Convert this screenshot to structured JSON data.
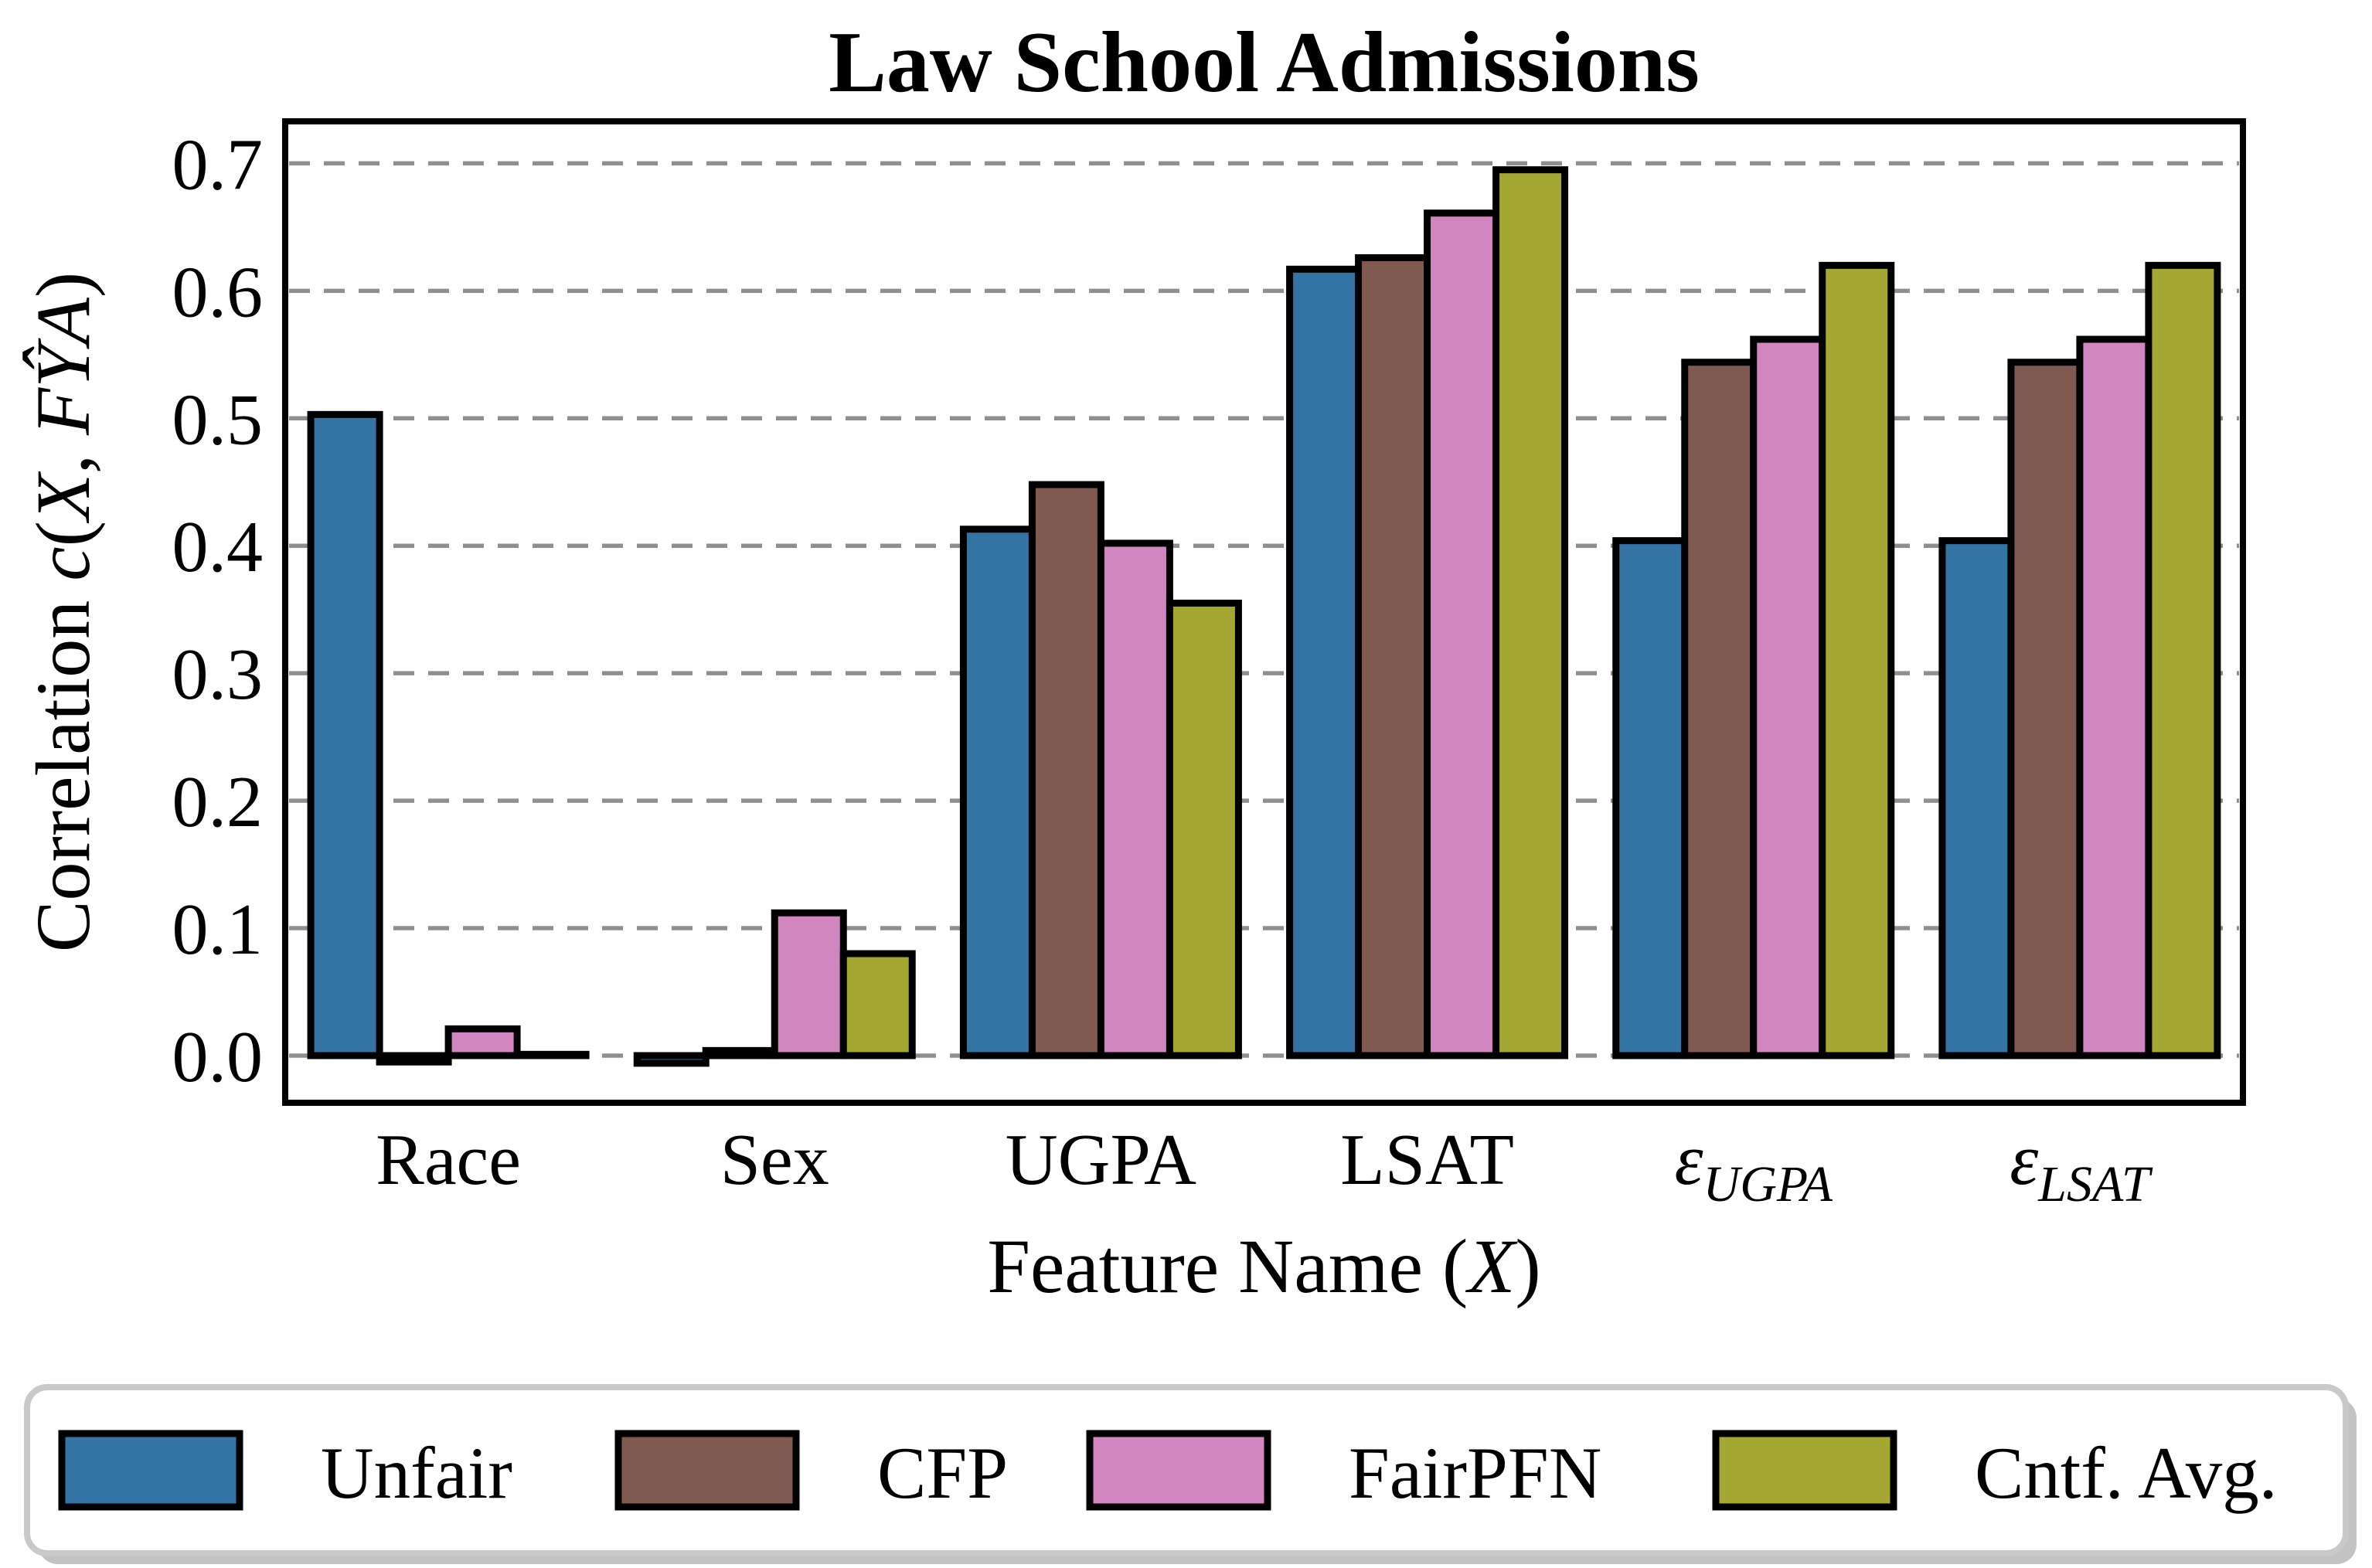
{
  "chart_data": {
    "type": "bar",
    "title": "Law School Admissions",
    "xlabel": "Feature Name (X)",
    "ylabel": "Correlation c(X, FŶA)",
    "xlabel_parts": [
      {
        "t": "Feature Name (",
        "i": 0
      },
      {
        "t": "X",
        "i": 1
      },
      {
        "t": ")",
        "i": 0
      }
    ],
    "ylabel_parts": [
      {
        "t": "Correlation ",
        "i": 0
      },
      {
        "t": "c",
        "i": 1
      },
      {
        "t": "(",
        "i": 0
      },
      {
        "t": "X",
        "i": 1
      },
      {
        "t": ", ",
        "i": 0
      },
      {
        "t": "FŶA",
        "i": 1
      },
      {
        "t": ")",
        "i": 0
      }
    ],
    "categories": [
      {
        "text": "Race",
        "sub": null,
        "italic": false
      },
      {
        "text": "Sex",
        "sub": null,
        "italic": false
      },
      {
        "text": "UGPA",
        "sub": null,
        "italic": false
      },
      {
        "text": "LSAT",
        "sub": null,
        "italic": false
      },
      {
        "text": "ε",
        "sub": "UGPA",
        "italic": true
      },
      {
        "text": "ε",
        "sub": "LSAT",
        "italic": true
      }
    ],
    "series": [
      {
        "name": "Unfair",
        "color": "#3374A4",
        "values": [
          0.503,
          -0.006,
          0.413,
          0.617,
          0.404,
          0.404
        ]
      },
      {
        "name": "CFP",
        "color": "#805A50",
        "values": [
          -0.005,
          0.004,
          0.448,
          0.626,
          0.544,
          0.544
        ]
      },
      {
        "name": "FairPFN",
        "color": "#D286C0",
        "values": [
          0.021,
          0.112,
          0.402,
          0.661,
          0.562,
          0.562
        ]
      },
      {
        "name": "Cntf. Avg.",
        "color": "#A4A832",
        "values": [
          0.001,
          0.08,
          0.355,
          0.695,
          0.62,
          0.62
        ]
      }
    ],
    "yticks": [
      0.0,
      0.1,
      0.2,
      0.3,
      0.4,
      0.5,
      0.6,
      0.7
    ],
    "ytick_labels": [
      "0.0",
      "0.1",
      "0.2",
      "0.3",
      "0.4",
      "0.5",
      "0.6",
      "0.7"
    ],
    "ylim": [
      -0.037,
      0.733
    ],
    "grid": "horizontal-dashed",
    "legend_position": "bottom",
    "colors": {
      "background": "#ffffff",
      "bar_edge": "#000000",
      "gridline": "#8f8f8f",
      "spine": "#000000",
      "legend_border": "#c9c9c9",
      "legend_shadow": "#c3c3c3"
    }
  },
  "legend": {
    "items": [
      {
        "label": "Unfair",
        "color": "#3374A4"
      },
      {
        "label": "CFP",
        "color": "#805A50"
      },
      {
        "label": "FairPFN",
        "color": "#D286C0"
      },
      {
        "label": "Cntf. Avg.",
        "color": "#A4A832"
      }
    ]
  }
}
